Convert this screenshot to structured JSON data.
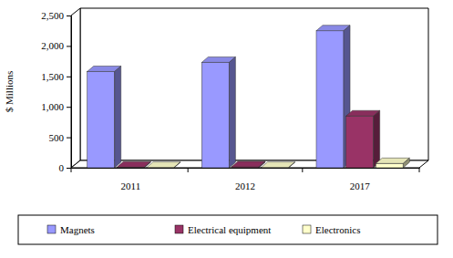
{
  "chart_data": {
    "type": "bar",
    "categories": [
      "2011",
      "2012",
      "2017"
    ],
    "series": [
      {
        "name": "Magnets",
        "color": "#9999ff",
        "values": [
          1580,
          1730,
          2250
        ]
      },
      {
        "name": "Electrical equipment",
        "color": "#993366",
        "values": [
          10,
          15,
          850
        ]
      },
      {
        "name": "Electronics",
        "color": "#ffffcc",
        "values": [
          5,
          5,
          70
        ]
      }
    ],
    "y_label": "$ Millions",
    "ylim": [
      0,
      2500
    ],
    "yticks": [
      0,
      500,
      {
        "value": 1000,
        "label": "1,000"
      },
      {
        "value": 1500,
        "label": "1,500"
      },
      {
        "value": 2000,
        "label": "2,000"
      },
      {
        "value": 2500,
        "label": "2,500"
      }
    ],
    "grid": false,
    "legend": "bottom"
  }
}
